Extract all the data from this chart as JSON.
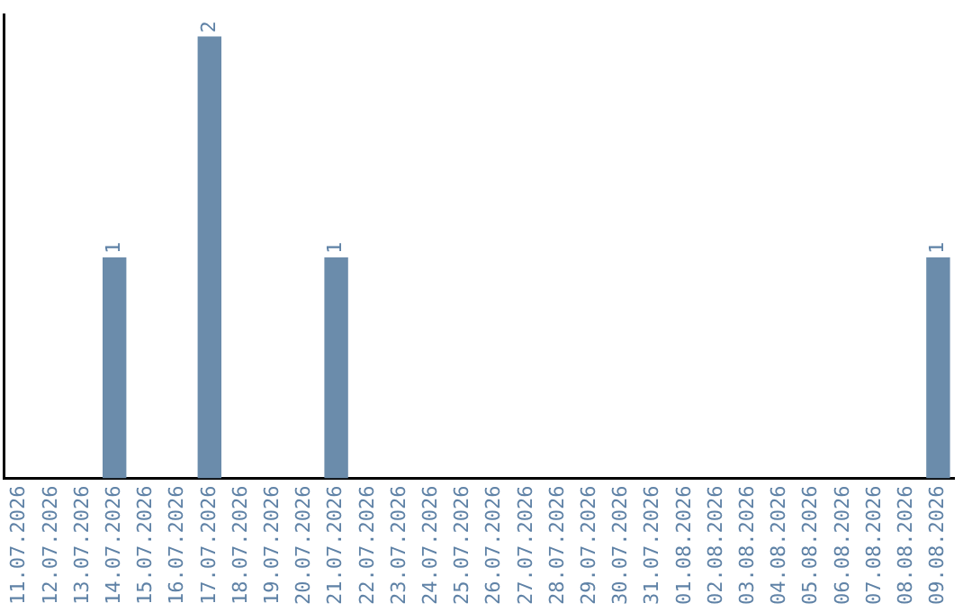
{
  "chart_data": {
    "type": "bar",
    "categories": [
      "11.07.2026",
      "12.07.2026",
      "13.07.2026",
      "14.07.2026",
      "15.07.2026",
      "16.07.2026",
      "17.07.2026",
      "18.07.2026",
      "19.07.2026",
      "20.07.2026",
      "21.07.2026",
      "22.07.2026",
      "23.07.2026",
      "24.07.2026",
      "25.07.2026",
      "26.07.2026",
      "27.07.2026",
      "28.07.2026",
      "29.07.2026",
      "30.07.2026",
      "31.07.2026",
      "01.08.2026",
      "02.08.2026",
      "03.08.2026",
      "04.08.2026",
      "05.08.2026",
      "06.08.2026",
      "07.08.2026",
      "08.08.2026",
      "09.08.2026"
    ],
    "values": [
      0,
      0,
      0,
      1,
      0,
      0,
      2,
      0,
      0,
      0,
      1,
      0,
      0,
      0,
      0,
      0,
      0,
      0,
      0,
      0,
      0,
      0,
      0,
      0,
      0,
      0,
      0,
      0,
      0,
      1
    ],
    "value_labels": [
      null,
      null,
      null,
      "1",
      null,
      null,
      "2",
      null,
      null,
      null,
      "1",
      null,
      null,
      null,
      null,
      null,
      null,
      null,
      null,
      null,
      null,
      null,
      null,
      null,
      null,
      null,
      null,
      null,
      null,
      "1"
    ],
    "color": "#6b8cab",
    "grid": false,
    "legend": false,
    "tick_labels": "x"
  }
}
